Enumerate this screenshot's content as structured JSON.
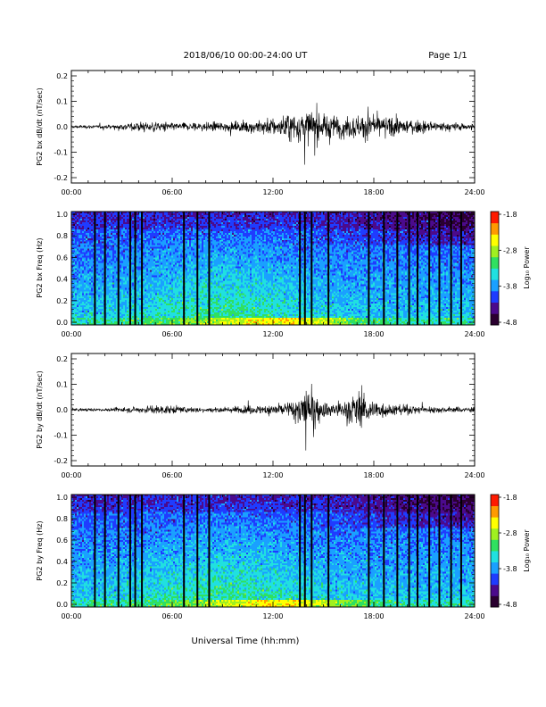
{
  "header": {
    "title": "2018/06/10  00:00-24:00 UT",
    "page": "Page 1/1"
  },
  "footer": {
    "xlabel": "Universal Time (hh:mm)"
  },
  "colorbar": {
    "label": "Log₁₀ Power",
    "ticks": [
      "-1.8",
      "-2.8",
      "-3.8",
      "-4.8"
    ],
    "range": [
      -4.8,
      -1.8
    ],
    "colors": [
      "#2a0030",
      "#4b0a8c",
      "#1f3cff",
      "#1aa0ff",
      "#20e0e0",
      "#30e060",
      "#a0f020",
      "#ffff00",
      "#ff9a00",
      "#ff1a00"
    ]
  },
  "chart_data": [
    {
      "type": "line",
      "ylabel": "PG2 bx dB/dt (nT/sec)",
      "xticks": [
        "00:00",
        "06:00",
        "12:00",
        "18:00",
        "24:00"
      ],
      "yticks": [
        "0.2",
        "0.1",
        "0.0",
        "-0.1",
        "-0.2"
      ],
      "xlim": [
        0,
        24
      ],
      "ylim": [
        -0.2,
        0.2
      ],
      "grid": false,
      "x": [
        0,
        2,
        4,
        5,
        6,
        8,
        10,
        11,
        12,
        13,
        14,
        15,
        16,
        17,
        18,
        19,
        20,
        22,
        24
      ],
      "amplitude": [
        0.005,
        0.006,
        0.015,
        0.02,
        0.012,
        0.015,
        0.015,
        0.025,
        0.03,
        0.045,
        0.055,
        0.045,
        0.035,
        0.04,
        0.04,
        0.03,
        0.025,
        0.015,
        0.01
      ]
    },
    {
      "type": "heatmap",
      "ylabel": "PG2 bx Freq (Hz)",
      "xticks": [
        "00:00",
        "06:00",
        "12:00",
        "18:00",
        "24:00"
      ],
      "yticks": [
        "1.0",
        "0.8",
        "0.6",
        "0.4",
        "0.2",
        "0.0"
      ],
      "xlim": [
        0,
        24
      ],
      "ylim": [
        0,
        1.0
      ],
      "value_range": [
        -4.8,
        -1.8
      ],
      "gaps_hours": [
        1.4,
        2.0,
        2.8,
        3.5,
        3.8,
        4.2,
        6.7,
        7.5,
        8.2,
        13.6,
        13.9,
        14.3,
        15.3,
        17.7,
        18.6,
        19.4,
        20.1,
        20.6,
        21.3,
        21.9,
        22.6,
        23.2
      ]
    },
    {
      "type": "line",
      "ylabel": "PG2 by dB/dt (nT/sec)",
      "xticks": [
        "00:00",
        "06:00",
        "12:00",
        "18:00",
        "24:00"
      ],
      "yticks": [
        "0.2",
        "0.1",
        "0.0",
        "-0.1",
        "-0.2"
      ],
      "xlim": [
        0,
        24
      ],
      "ylim": [
        -0.2,
        0.2
      ],
      "grid": false,
      "x": [
        0,
        2,
        4,
        5,
        6,
        7,
        8,
        10,
        11,
        12,
        13,
        14,
        14.5,
        15,
        16,
        17,
        18,
        19,
        20,
        22,
        24
      ],
      "amplitude": [
        0.004,
        0.005,
        0.01,
        0.015,
        0.012,
        0.01,
        0.008,
        0.01,
        0.015,
        0.02,
        0.03,
        0.07,
        0.06,
        0.025,
        0.03,
        0.055,
        0.03,
        0.02,
        0.015,
        0.01,
        0.008
      ]
    },
    {
      "type": "heatmap",
      "ylabel": "PG2 by Freq (Hz)",
      "xticks": [
        "00:00",
        "06:00",
        "12:00",
        "18:00",
        "24:00"
      ],
      "yticks": [
        "1.0",
        "0.8",
        "0.6",
        "0.4",
        "0.2",
        "0.0"
      ],
      "xlim": [
        0,
        24
      ],
      "ylim": [
        0,
        1.0
      ],
      "value_range": [
        -4.8,
        -1.8
      ],
      "gaps_hours": [
        1.4,
        2.0,
        2.8,
        3.5,
        3.8,
        4.2,
        6.7,
        7.5,
        8.2,
        13.6,
        13.9,
        14.3,
        15.3,
        17.7,
        18.6,
        19.4,
        20.1,
        20.6,
        21.3,
        21.9,
        22.6,
        23.2
      ]
    }
  ]
}
